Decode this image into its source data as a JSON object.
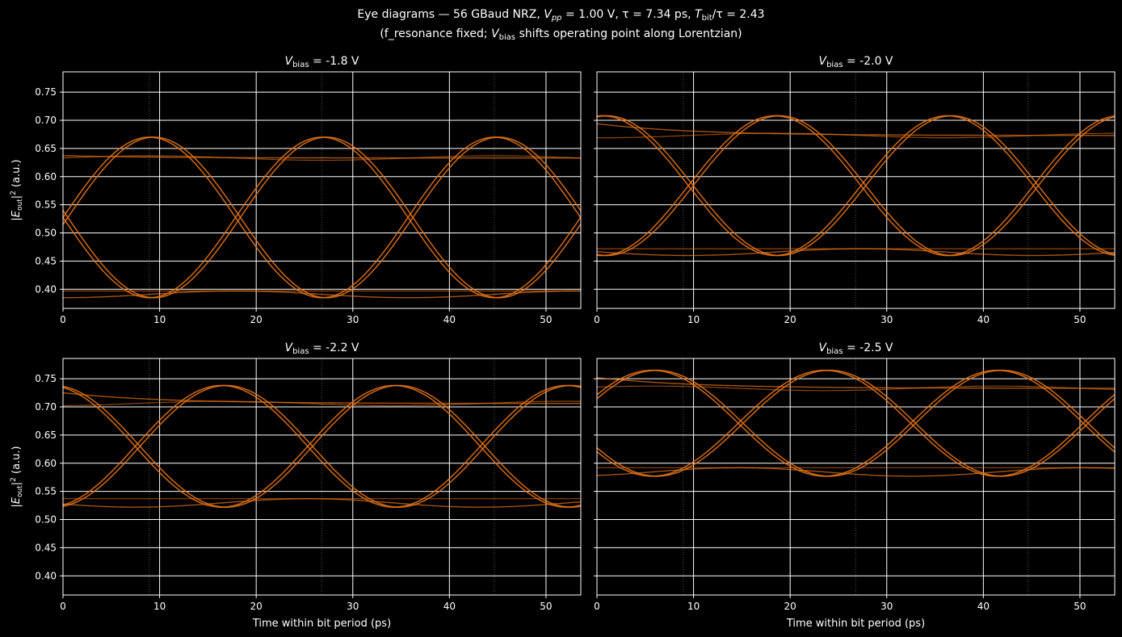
{
  "title": {
    "line1_prefix": "Eye diagrams — 56 GBaud NRZ,  ",
    "vpp_symbol": "V",
    "vpp_sub": "pp",
    "vpp_value": " = 1.00 V,  τ = 7.34 ps,  ",
    "tbit_symbol": "T",
    "tbit_sub": "bit",
    "tbit_value": "/τ = 2.43",
    "line2_prefix": "(f_resonance fixed; ",
    "vbias_symbol": "V",
    "vbias_sub": "bias",
    "line2_suffix": " shifts operating point along Lorentzian)"
  },
  "colors": {
    "background": "#000000",
    "trace": "#e8761a",
    "grid": "#ffffff",
    "bit_marker": "#555555"
  },
  "chart_data": [
    {
      "type": "line",
      "title": "V_bias = -1.8 V",
      "title_symbol": "V",
      "title_sub": "bias",
      "title_value": " = -1.8 V",
      "xlabel": "",
      "ylabel": "|E_out|^2 (a.u.)",
      "xlim": [
        0,
        53.6
      ],
      "ylim": [
        0.366,
        0.786
      ],
      "xticks": [
        0,
        10,
        20,
        30,
        40,
        50
      ],
      "yticks": [
        0.4,
        0.45,
        0.5,
        0.55,
        0.6,
        0.65,
        0.7,
        0.75
      ],
      "bit_markers_ps": [
        8.93,
        26.79,
        44.64
      ],
      "levels": {
        "high_start": 0.64,
        "high_settled": 0.633,
        "high_peak": 0.67,
        "low_settled": 0.397,
        "low_min": 0.385,
        "crossing": 0.525
      },
      "phase_ps": 8.93,
      "grid": true
    },
    {
      "type": "line",
      "title": "V_bias = -2.0 V",
      "title_symbol": "V",
      "title_sub": "bias",
      "title_value": " = -2.0 V",
      "xlabel": "",
      "ylabel": "",
      "xlim": [
        0,
        53.6
      ],
      "ylim": [
        0.366,
        0.786
      ],
      "xticks": [
        0,
        10,
        20,
        30,
        40,
        50
      ],
      "yticks": [
        0.4,
        0.45,
        0.5,
        0.55,
        0.6,
        0.65,
        0.7,
        0.75
      ],
      "bit_markers_ps": [
        8.93,
        26.79,
        44.64
      ],
      "levels": {
        "high_start": 0.708,
        "high_settled": 0.673,
        "high_peak": 0.708,
        "low_settled": 0.472,
        "low_min": 0.46,
        "crossing": 0.59
      },
      "phase_ps": 18.4,
      "grid": true
    },
    {
      "type": "line",
      "title": "V_bias = -2.2 V",
      "title_symbol": "V",
      "title_sub": "bias",
      "title_value": " = -2.2 V",
      "xlabel": "Time within bit period (ps)",
      "ylabel": "|E_out|^2 (a.u.)",
      "xlim": [
        0,
        53.6
      ],
      "ylim": [
        0.366,
        0.786
      ],
      "xticks": [
        0,
        10,
        20,
        30,
        40,
        50
      ],
      "yticks": [
        0.4,
        0.45,
        0.5,
        0.55,
        0.6,
        0.65,
        0.7,
        0.75
      ],
      "bit_markers_ps": [
        8.93,
        26.79,
        44.64
      ],
      "levels": {
        "high_start": 0.738,
        "high_settled": 0.706,
        "high_peak": 0.738,
        "low_settled": 0.537,
        "low_min": 0.522,
        "crossing": 0.63
      },
      "phase_ps": 16.4,
      "grid": true
    },
    {
      "type": "line",
      "title": "V_bias = -2.5 V",
      "title_symbol": "V",
      "title_sub": "bias",
      "title_value": " = -2.5 V",
      "xlabel": "Time within bit period (ps)",
      "ylabel": "",
      "xlim": [
        0,
        53.6
      ],
      "ylim": [
        0.366,
        0.786
      ],
      "xticks": [
        0,
        10,
        20,
        30,
        40,
        50
      ],
      "yticks": [
        0.4,
        0.45,
        0.5,
        0.55,
        0.6,
        0.65,
        0.7,
        0.75
      ],
      "bit_markers_ps": [
        8.93,
        26.79,
        44.64
      ],
      "levels": {
        "high_start": 0.765,
        "high_settled": 0.733,
        "high_peak": 0.765,
        "low_settled": 0.592,
        "low_min": 0.577,
        "crossing": 0.67
      },
      "phase_ps": 5.7,
      "grid": true
    }
  ]
}
